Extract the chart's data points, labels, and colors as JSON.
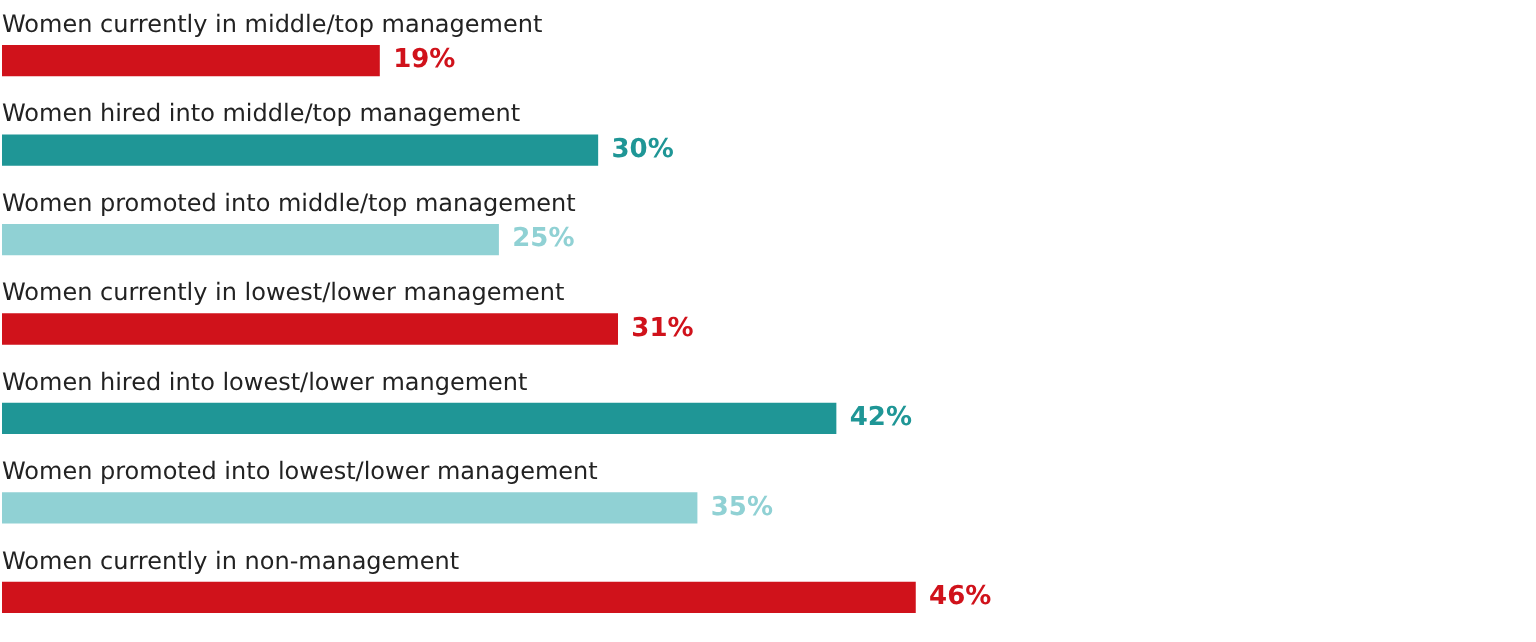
{
  "chart_data": {
    "type": "bar",
    "orientation": "horizontal",
    "categories": [
      "Women currently in middle/top management",
      "Women hired into middle/top management",
      "Women promoted into middle/top management",
      "Women currently in lowest/lower management",
      "Women hired into lowest/lower mangement",
      "Women promoted into lowest/lower management",
      "Women currently in non-management"
    ],
    "values": [
      19,
      30,
      25,
      31,
      42,
      35,
      46
    ],
    "value_labels": [
      "19%",
      "30%",
      "25%",
      "31%",
      "42%",
      "35%",
      "46%"
    ],
    "colors": [
      "#d0121b",
      "#1f9696",
      "#90d1d4",
      "#d0121b",
      "#1f9696",
      "#90d1d4",
      "#d0121b"
    ],
    "legend": false,
    "tick_labels": false
  }
}
